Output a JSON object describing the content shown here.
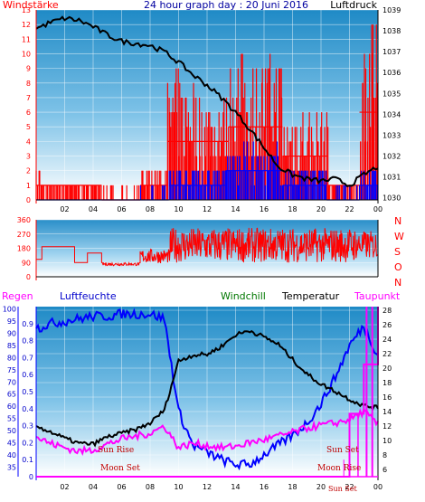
{
  "chart_data": [
    {
      "id": "wind",
      "type": "bar",
      "title": "24 hour graph day : 20 Juni 2016",
      "left_label": "Windstärke",
      "right_label": "Luftdruck",
      "x_ticks": [
        "02",
        "04",
        "06",
        "08",
        "10",
        "12",
        "14",
        "16",
        "18",
        "20",
        "22",
        "00"
      ],
      "y_left_ticks": [
        0,
        1,
        2,
        3,
        4,
        5,
        6,
        7,
        8,
        9,
        10,
        11,
        12,
        13
      ],
      "y_left_range": [
        0,
        13
      ],
      "y_right_ticks": [
        1030,
        1031,
        1032,
        1033,
        1034,
        1035,
        1036,
        1037,
        1038,
        1039
      ],
      "y_right_range": [
        1029.9,
        1039
      ],
      "colors": {
        "wind_gust": "#ff0000",
        "wind_avg": "#0000ff",
        "pressure": "#000000",
        "left_axis": "#ff0000",
        "right_axis": "#000000",
        "title": "#0000a0"
      },
      "series": [
        {
          "key": "pressure",
          "x": [
            0,
            1,
            2,
            3,
            4,
            5,
            6,
            7,
            8,
            9,
            10,
            11,
            12,
            13,
            14,
            15,
            16,
            17,
            18,
            19,
            20,
            21,
            22,
            23,
            24
          ],
          "values": [
            1038.1,
            1038.4,
            1038.6,
            1038.5,
            1038.2,
            1037.8,
            1037.5,
            1037.4,
            1037.3,
            1037.0,
            1036.5,
            1035.9,
            1035.4,
            1034.8,
            1034.1,
            1033.3,
            1032.4,
            1031.5,
            1031.1,
            1030.9,
            1030.8,
            1030.9,
            1030.6,
            1031.1,
            1031.5
          ]
        },
        {
          "key": "wind_gust",
          "segments": [
            {
              "from": 0,
              "to": 0.3,
              "level": 2
            },
            {
              "from": 0.3,
              "to": 4.6,
              "level": 1
            },
            {
              "from": 4.6,
              "to": 7.3,
              "level": 0.5
            },
            {
              "from": 7.3,
              "to": 9.2,
              "level": 2
            },
            {
              "from": 9.2,
              "to": 11.2,
              "level": 7
            },
            {
              "from": 11.2,
              "to": 13.5,
              "level": 6
            },
            {
              "from": 13.5,
              "to": 17.3,
              "level": 8
            },
            {
              "from": 17.3,
              "to": 20.5,
              "level": 5
            },
            {
              "from": 20.5,
              "to": 22.7,
              "level": 1
            },
            {
              "from": 22.7,
              "to": 24,
              "level": 10
            }
          ]
        },
        {
          "key": "wind_avg",
          "segments": [
            {
              "from": 0,
              "to": 7.3,
              "level": 0.2
            },
            {
              "from": 7.3,
              "to": 9.3,
              "level": 0.5
            },
            {
              "from": 9.3,
              "to": 13.3,
              "level": 2
            },
            {
              "from": 13.3,
              "to": 17.3,
              "level": 3
            },
            {
              "from": 17.3,
              "to": 20.4,
              "level": 2
            },
            {
              "from": 20.4,
              "to": 22.7,
              "level": 0.5
            },
            {
              "from": 22.7,
              "to": 24,
              "level": 2
            }
          ]
        }
      ]
    },
    {
      "id": "direction",
      "type": "line",
      "left_ticks": [
        0,
        90,
        180,
        270,
        360
      ],
      "y_range": [
        0,
        360
      ],
      "compass_labels": [
        "N",
        "W",
        "S",
        "O",
        "N"
      ],
      "colors": {
        "line": "#ff0000",
        "axis": "#ff0000"
      },
      "series": [
        {
          "key": "direction",
          "segments": [
            {
              "from": 0,
              "to": 0.4,
              "center": 110,
              "spread": 0
            },
            {
              "from": 0.4,
              "to": 2.7,
              "center": 190,
              "spread": 0
            },
            {
              "from": 2.7,
              "to": 3.6,
              "center": 90,
              "spread": 0
            },
            {
              "from": 3.6,
              "to": 4.6,
              "center": 150,
              "spread": 0
            },
            {
              "from": 4.6,
              "to": 7.3,
              "center": 80,
              "spread": 20
            },
            {
              "from": 7.3,
              "to": 9.4,
              "center": 130,
              "spread": 90
            },
            {
              "from": 9.4,
              "to": 22.4,
              "center": 200,
              "spread": 220
            },
            {
              "from": 22.4,
              "to": 24,
              "center": 200,
              "spread": 180
            }
          ]
        }
      ]
    },
    {
      "id": "climate",
      "type": "line",
      "labels": {
        "rain": "Regen",
        "humidity": "Luftfeuchte",
        "windchill": "Windchill",
        "temperature": "Temperatur",
        "dewpoint": "Taupunkt"
      },
      "rain_ticks": [
        0,
        0.1,
        0.2,
        0.3,
        0.4,
        0.5,
        0.6,
        0.7,
        0.8,
        0.9
      ],
      "rain_range": [
        0,
        1.0
      ],
      "humidity_ticks": [
        35,
        40,
        45,
        50,
        55,
        60,
        65,
        70,
        75,
        80,
        85,
        90,
        95,
        100
      ],
      "humidity_range": [
        31,
        101
      ],
      "temp_ticks": [
        6,
        8,
        10,
        12,
        14,
        16,
        18,
        20,
        22,
        24,
        26,
        28
      ],
      "temp_range": [
        5,
        28.5
      ],
      "annotations": [
        "Sun Rise",
        "Moon Set",
        "Sun Set",
        "Moon Rise",
        "Sun Set"
      ],
      "colors": {
        "temperature": "#000000",
        "humidity": "#0000ff",
        "dewpoint": "#ff00ff",
        "rain": "#ff0000",
        "windchill": "#007700",
        "annotation": "#c00000"
      },
      "series": [
        {
          "key": "temperature",
          "x": [
            0,
            1,
            2,
            3,
            4,
            5,
            6,
            7,
            8,
            9,
            10,
            11,
            12,
            13,
            14,
            15,
            16,
            17,
            18,
            19,
            20,
            21,
            22,
            23,
            24
          ],
          "values": [
            12.0,
            11.2,
            10.3,
            9.6,
            9.5,
            10.5,
            11.0,
            11.5,
            12.4,
            14.2,
            21.0,
            21.8,
            21.9,
            23.0,
            24.6,
            25.2,
            24.3,
            23.3,
            21.2,
            19.2,
            17.8,
            16.8,
            15.7,
            14.8,
            14.5
          ]
        },
        {
          "key": "humidity",
          "x": [
            0,
            1,
            2,
            3,
            4,
            5,
            6,
            7,
            8,
            9,
            10,
            11,
            12,
            13,
            14,
            15,
            16,
            17,
            18,
            19,
            20,
            21,
            22,
            23,
            24
          ],
          "values": [
            92,
            94,
            95,
            96,
            97,
            97,
            98,
            98,
            98,
            96,
            58,
            44,
            41,
            38,
            36,
            36,
            40,
            44,
            48,
            53,
            61,
            72,
            85,
            93,
            81
          ]
        },
        {
          "key": "dewpoint",
          "x": [
            0,
            1,
            2,
            3,
            4,
            5,
            6,
            7,
            8,
            9,
            10,
            11,
            12,
            13,
            14,
            15,
            16,
            17,
            18,
            19,
            20,
            21,
            22,
            23,
            24
          ],
          "values": [
            10.5,
            9.6,
            9.0,
            8.5,
            8.7,
            9.5,
            10.2,
            10.6,
            11.0,
            12.0,
            9.0,
            9.6,
            9.3,
            9.0,
            9.2,
            9.7,
            10.1,
            10.6,
            11.1,
            11.7,
            12.1,
            12.4,
            12.9,
            14.0,
            12.2
          ]
        },
        {
          "key": "rain",
          "x": [
            0,
            1,
            2,
            3,
            4,
            5,
            6,
            7,
            8,
            9,
            10,
            11,
            12,
            13,
            14,
            15,
            16,
            17,
            18,
            19,
            20,
            21,
            22,
            23,
            24
          ],
          "values": [
            0,
            0,
            0,
            0,
            0,
            0,
            0,
            0,
            0,
            0,
            0,
            0,
            0,
            0,
            0,
            0,
            0,
            0,
            0,
            0,
            0,
            0,
            0.37,
            0.66,
            1.0
          ]
        }
      ]
    }
  ]
}
